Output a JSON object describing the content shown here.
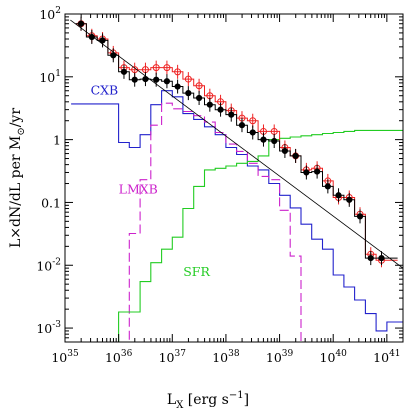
{
  "chart_data": {
    "type": "line",
    "x_scale": "log",
    "y_scale": "log",
    "xlim": [
      1e+35,
      2e+41
    ],
    "ylim": [
      0.0006,
      100
    ],
    "grid": false,
    "xlabel": "L",
    "xlabel_sub": "X",
    "xlabel_rest": " [erg s",
    "xlabel_sup": "−1",
    "xlabel_close": "]",
    "ylabel": "L×dN/dL per M",
    "ylabel_sub": "⊙",
    "ylabel_rest": "/yr",
    "x_ticks": [
      {
        "value": 1e+35,
        "base": "10",
        "exp": "35"
      },
      {
        "value": 1e+36,
        "base": "10",
        "exp": "36"
      },
      {
        "value": 1e+37,
        "base": "10",
        "exp": "37"
      },
      {
        "value": 1e+38,
        "base": "10",
        "exp": "38"
      },
      {
        "value": 1e+39,
        "base": "10",
        "exp": "39"
      },
      {
        "value": 1e+40,
        "base": "10",
        "exp": "40"
      },
      {
        "value": 1e+41,
        "base": "10",
        "exp": "41"
      }
    ],
    "y_ticks": [
      {
        "value": 100,
        "base": "10",
        "exp": "2"
      },
      {
        "value": 10,
        "base": "10",
        "exp": "1"
      },
      {
        "value": 1,
        "base": "1",
        "exp": ""
      },
      {
        "value": 0.1,
        "base": "0.1",
        "exp": ""
      },
      {
        "value": 0.01,
        "base": "10",
        "exp": "-2"
      },
      {
        "value": 0.001,
        "base": "10",
        "exp": "-3"
      }
    ],
    "series": [
      {
        "name": "CXB",
        "color": "#2222cc",
        "style": "step",
        "label_at": [
          3e+35,
          5.2
        ],
        "x": [
          1.3e+35,
          1e+36,
          1.58e+36,
          2.51e+36,
          3.98e+36,
          6.31e+36,
          1e+37,
          1.58e+37,
          2.51e+37,
          3.98e+37,
          6.31e+37,
          1e+38,
          1.58e+38,
          2.51e+38,
          3.98e+38,
          6.31e+38,
          1e+39,
          1.58e+39,
          2.51e+39,
          3.98e+39,
          6.31e+39,
          1e+40,
          1.58e+40,
          2.51e+40,
          3.98e+40,
          6.31e+40,
          1e+41,
          1.58e+41
        ],
        "y": [
          3.7,
          0.9,
          0.75,
          1.2,
          3.6,
          6.0,
          4.8,
          2.6,
          2.1,
          1.6,
          1.2,
          0.75,
          0.58,
          0.38,
          0.33,
          0.2,
          0.13,
          0.082,
          0.045,
          0.026,
          0.018,
          0.007,
          0.0045,
          0.0028,
          0.0017,
          0.0009,
          0.00125,
          0.00125
        ]
      },
      {
        "name": "LMXB",
        "color": "#cc22cc",
        "style": "dashed-step",
        "label_at": [
          1e+36,
          0.14
        ],
        "x": [
          1e+36,
          1.58e+36,
          2.51e+36,
          3.98e+36,
          6.31e+36,
          1e+37,
          1.58e+37,
          2.51e+37,
          3.98e+37,
          6.31e+37,
          1e+38,
          1.58e+38,
          2.51e+38,
          3.98e+38,
          6.31e+38,
          1e+39,
          1.58e+39,
          2.51e+39
        ],
        "y": [
          0.0006,
          0.032,
          0.23,
          1.7,
          3.8,
          3.1,
          2.8,
          2.4,
          1.9,
          1.3,
          0.85,
          0.65,
          0.42,
          0.26,
          0.23,
          0.075,
          0.014,
          0.0006
        ]
      },
      {
        "name": "SFR",
        "color": "#22cc22",
        "style": "step",
        "label_at": [
          1.6e+37,
          0.0068
        ],
        "x": [
          1.3e+35,
          1e+36,
          1.58e+36,
          2.51e+36,
          3.98e+36,
          6.31e+36,
          1e+37,
          1.58e+37,
          2.51e+37,
          3.98e+37,
          6.31e+37,
          1e+38,
          1.58e+38,
          2.51e+38,
          3.98e+38,
          6.31e+38,
          1e+39,
          1.58e+39,
          2.51e+39,
          3.98e+39,
          6.31e+39,
          1e+40,
          1.58e+40,
          2.51e+40,
          3.98e+40,
          6.31e+40,
          1e+41,
          1.58e+41
        ],
        "y": [
          0.0005,
          0.0018,
          0.0018,
          0.0055,
          0.011,
          0.018,
          0.028,
          0.08,
          0.18,
          0.33,
          0.35,
          0.38,
          0.42,
          0.45,
          0.55,
          1.0,
          1.05,
          1.1,
          1.15,
          1.2,
          1.25,
          1.3,
          1.35,
          1.4,
          1.4,
          1.4,
          1.4,
          1.4
        ]
      },
      {
        "name": "",
        "color": "#ee2222",
        "style": "step-open-points",
        "x": [
          1.58e+35,
          2.51e+35,
          3.98e+35,
          6.31e+35,
          1e+36,
          1.58e+36,
          2.51e+36,
          3.98e+36,
          6.31e+36,
          1e+37,
          1.58e+37,
          2.51e+37,
          3.98e+37,
          6.31e+37,
          1e+38,
          1.58e+38,
          2.51e+38,
          3.98e+38,
          6.31e+38,
          1e+39,
          1.58e+39,
          2.51e+39,
          3.98e+39,
          6.31e+39,
          1e+40,
          1.58e+40,
          2.51e+40,
          3.98e+40,
          6.31e+40,
          1e+41
        ],
        "y": [
          70,
          45,
          40,
          24,
          14,
          13,
          13,
          14,
          14,
          12,
          9.2,
          7.2,
          5.0,
          4.0,
          2.9,
          2.2,
          2.0,
          1.35,
          1.35,
          0.75,
          0.55,
          0.33,
          0.35,
          0.22,
          0.12,
          0.12,
          0.065,
          0.015,
          0.012,
          0.012
        ]
      },
      {
        "name": "",
        "color": "#000000",
        "style": "step-filled-points",
        "x": [
          1.58e+35,
          2.51e+35,
          3.98e+35,
          6.31e+35,
          1e+36,
          1.58e+36,
          2.51e+36,
          3.98e+36,
          6.31e+36,
          1e+37,
          1.58e+37,
          2.51e+37,
          3.98e+37,
          6.31e+37,
          1e+38,
          1.58e+38,
          2.51e+38,
          3.98e+38,
          6.31e+38,
          1e+39,
          1.58e+39,
          2.51e+39,
          3.98e+39,
          6.31e+39,
          1e+40,
          1.58e+40,
          2.51e+40,
          3.98e+40,
          6.31e+40,
          1e+41
        ],
        "y": [
          70,
          43,
          38,
          22,
          12,
          9.0,
          9.2,
          9.0,
          8.5,
          7.0,
          5.5,
          4.6,
          3.6,
          3.0,
          2.5,
          1.7,
          1.3,
          1.0,
          0.95,
          0.66,
          0.55,
          0.3,
          0.31,
          0.18,
          0.13,
          0.11,
          0.06,
          0.013,
          0.013,
          0.013
        ]
      },
      {
        "name": "",
        "color": "#000000",
        "style": "fit-line",
        "x": [
          1.26e+35,
          2e+41
        ],
        "y": [
          80,
          0.009
        ]
      }
    ]
  }
}
